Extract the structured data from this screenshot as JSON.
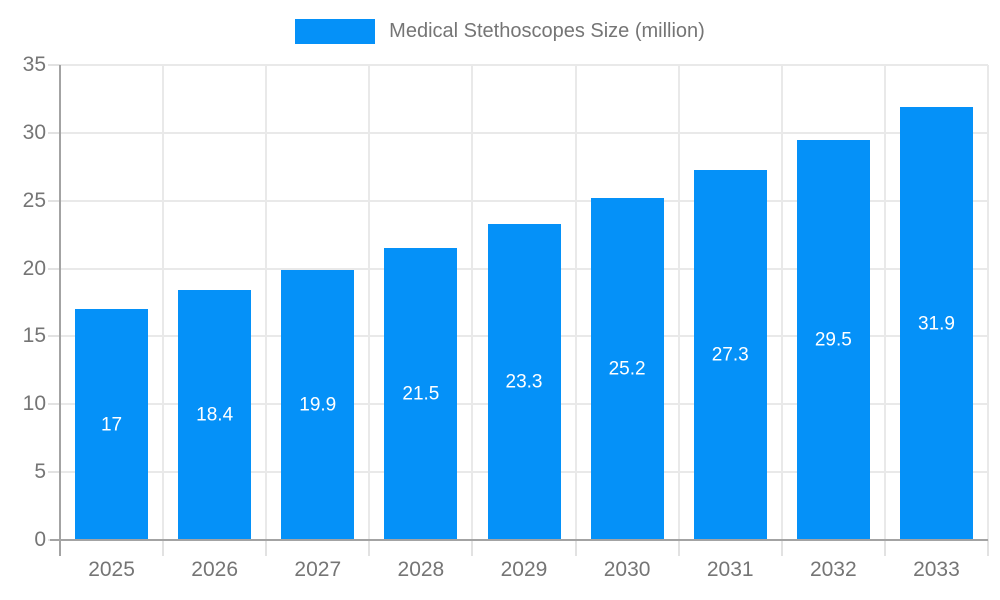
{
  "chart_data": {
    "type": "bar",
    "title": "",
    "xlabel": "",
    "ylabel": "",
    "categories": [
      "2025",
      "2026",
      "2027",
      "2028",
      "2029",
      "2030",
      "2031",
      "2032",
      "2033"
    ],
    "series": [
      {
        "name": "Medical Stethoscopes Size (million)",
        "values": [
          17,
          18.4,
          19.9,
          21.5,
          23.3,
          25.2,
          27.3,
          29.5,
          31.9
        ]
      }
    ],
    "value_labels": [
      "17",
      "18.4",
      "19.9",
      "21.5",
      "23.3",
      "25.2",
      "27.3",
      "29.5",
      "31.9"
    ],
    "ylim": [
      0,
      35
    ],
    "yticks": [
      0,
      5,
      10,
      15,
      20,
      25,
      30,
      35
    ],
    "grid": true,
    "legend_position": "top",
    "colors": {
      "bar": "#0591f8",
      "bar_value_text": "#ffffff",
      "axis_labels": "#757575",
      "legend_text": "#757575",
      "gridline": "#e9e9e9",
      "tick": "#e2e2e2",
      "axis_line": "#a3a3a3"
    }
  }
}
